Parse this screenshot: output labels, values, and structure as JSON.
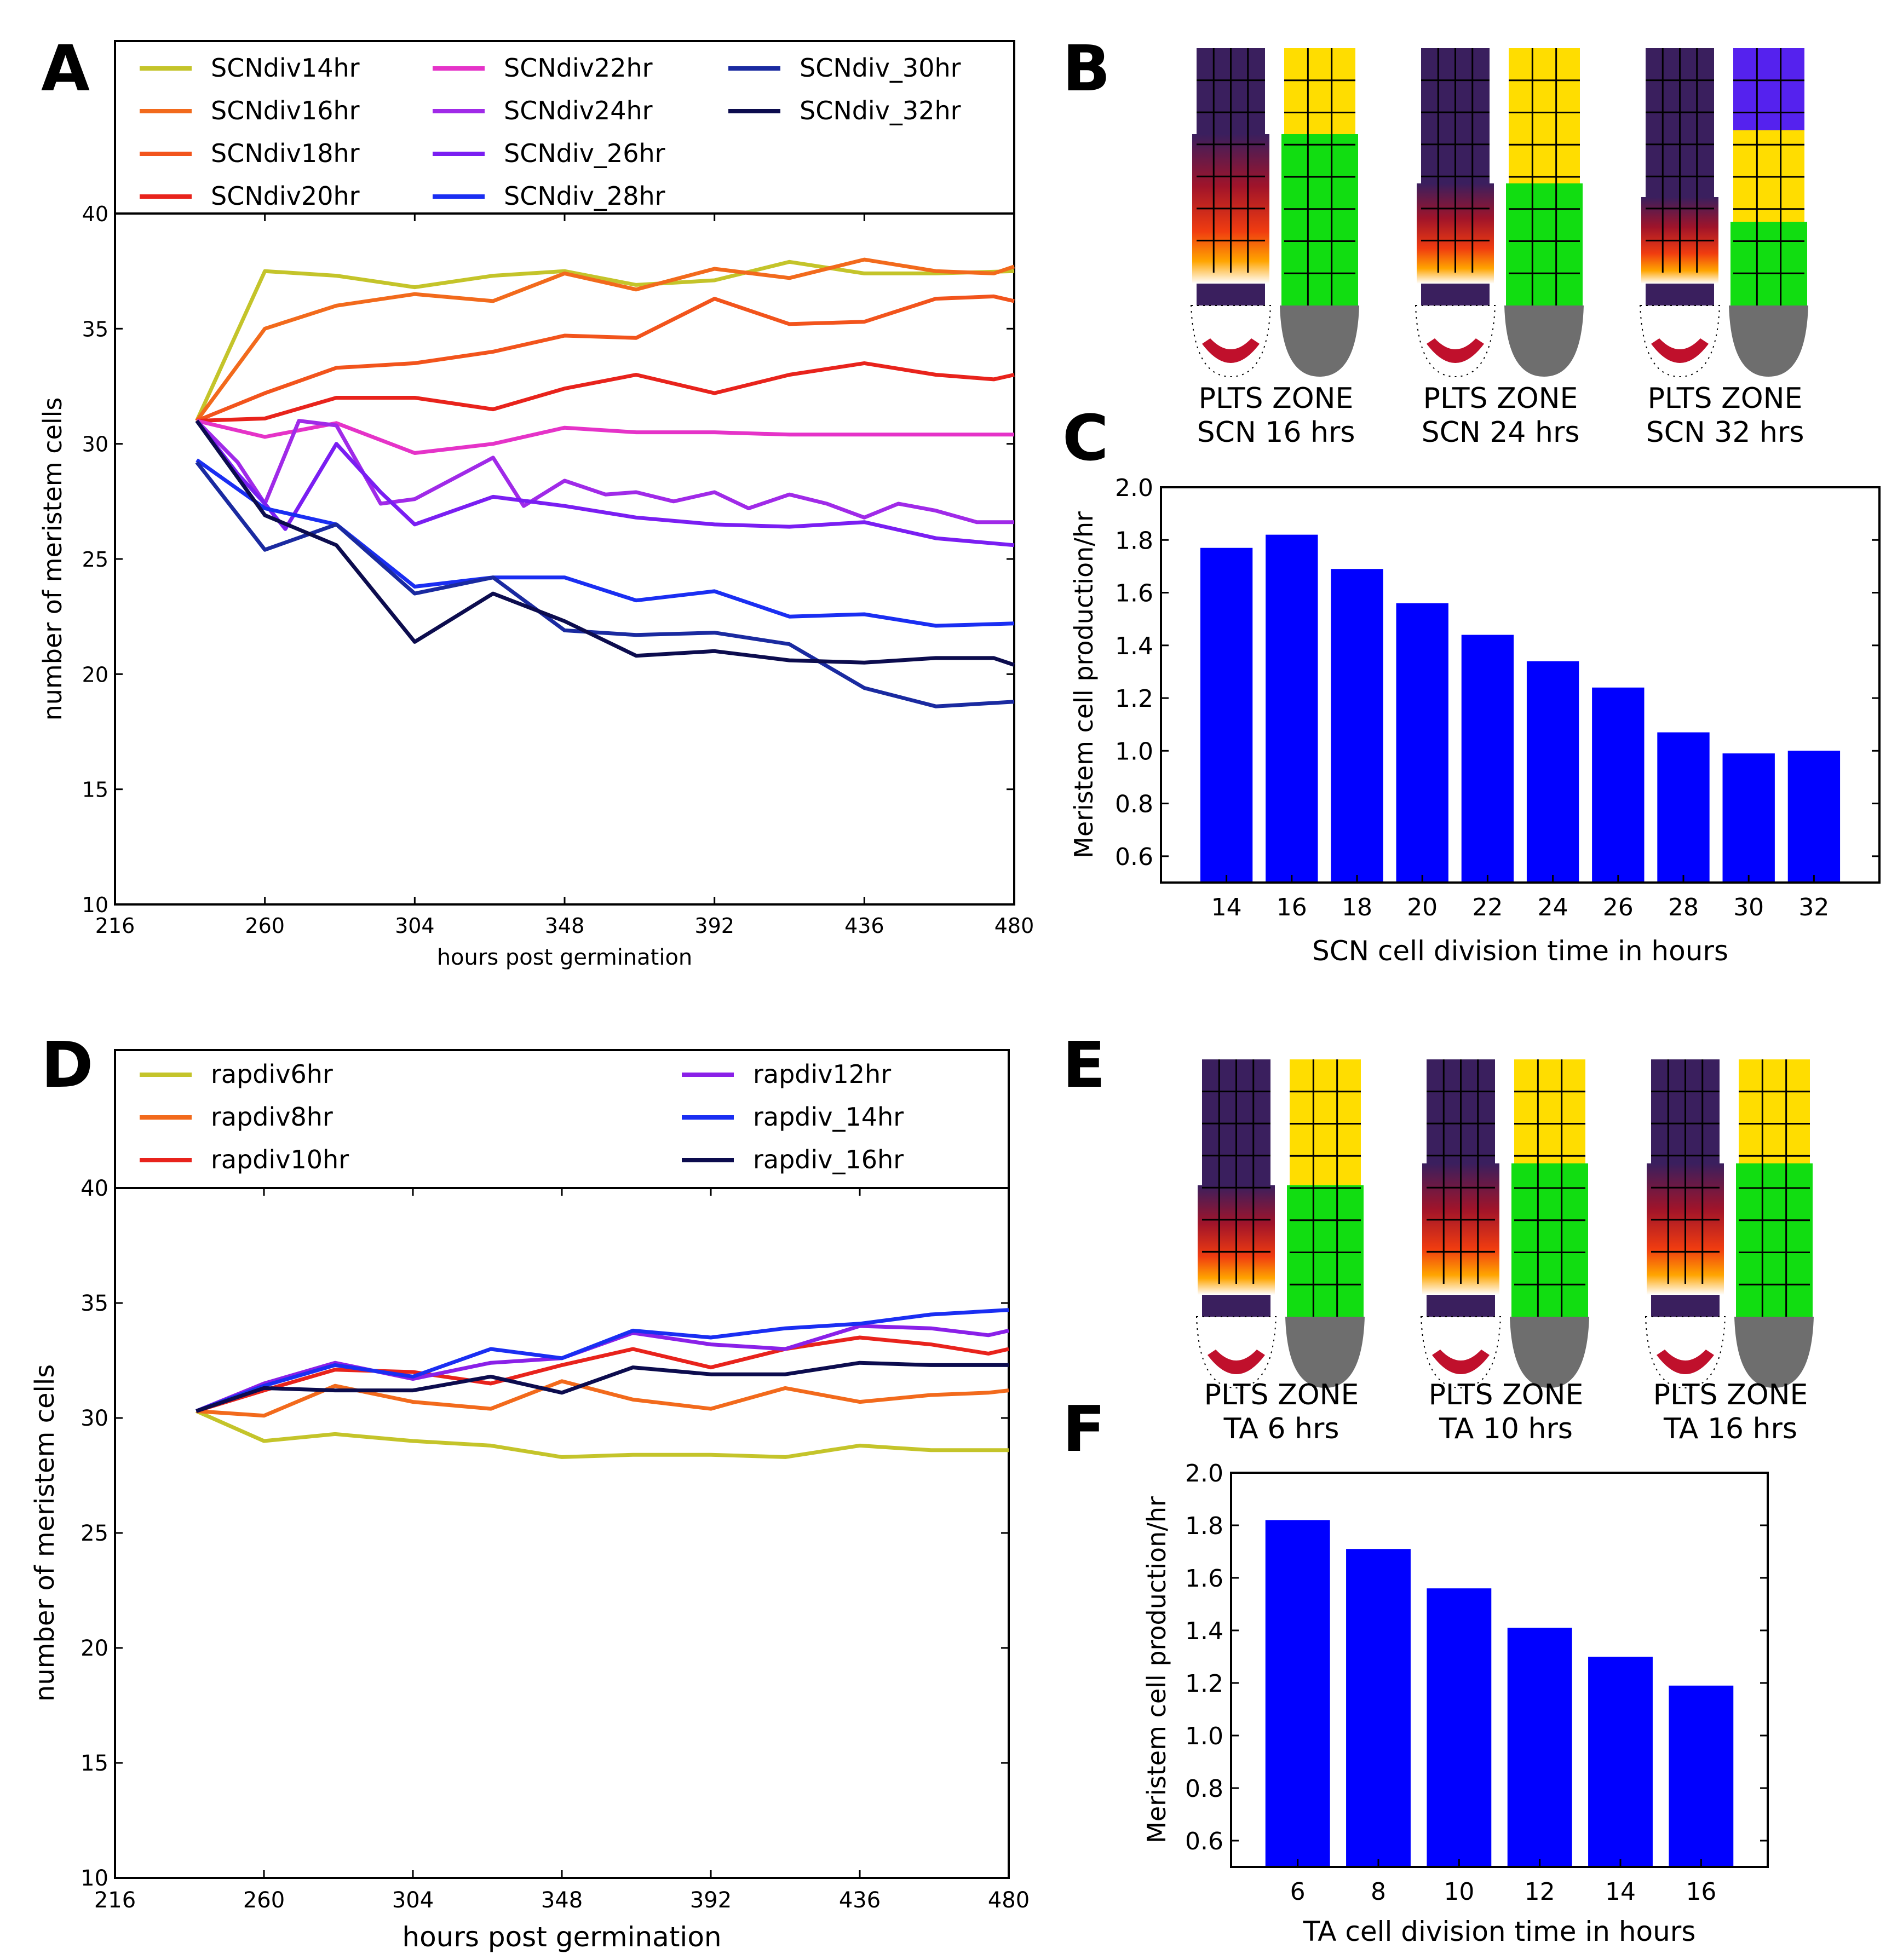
{
  "panel_letters": [
    "A",
    "B",
    "C",
    "D",
    "E",
    "F"
  ],
  "colors": {
    "SCNdiv14hr": "#c4c42a",
    "SCNdiv16hr": "#f26a1c",
    "SCNdiv18hr": "#f2541c",
    "SCNdiv20hr": "#e8231c",
    "SCNdiv22hr": "#e533c8",
    "SCNdiv24hr": "#a02ae8",
    "SCNdiv_26hr": "#7a1ef2",
    "SCNdiv_28hr": "#1a2ef2",
    "SCNdiv_30hr": "#1a2aa0",
    "SCNdiv_32hr": "#0c0c4e",
    "rapdiv6hr": "#c4c42a",
    "rapdiv8hr": "#f26a1c",
    "rapdiv10hr": "#e8231c",
    "rapdiv12hr": "#8a20e8",
    "rapdiv_14hr": "#1a2ef2",
    "rapdiv_16hr": "#0c0c4e",
    "bar": "#0000ff"
  },
  "root_images": {
    "B": {
      "pair_labels": [
        "PLTS  ZONE",
        "PLTS  ZONE",
        "PLTS  ZONE"
      ],
      "captions": [
        "SCN 16 hrs",
        "SCN 24 hrs",
        "SCN 32 hrs"
      ]
    },
    "E": {
      "pair_labels": [
        "PLTS  ZONE",
        "PLTS  ZONE",
        "PLTS  ZONE"
      ],
      "captions": [
        "TA 6 hrs",
        "TA 10 hrs",
        "TA 16 hrs"
      ]
    }
  },
  "chart_data": [
    {
      "id": "A",
      "type": "line",
      "xlabel": "hours post germination",
      "ylabel": "number of meristem cells",
      "xlim": [
        216,
        480
      ],
      "ylim": [
        10,
        40
      ],
      "xticks": [
        "216",
        "260",
        "304",
        "348",
        "392",
        "436",
        "480"
      ],
      "yticks": [
        "10",
        "15",
        "20",
        "25",
        "30",
        "35",
        "40"
      ],
      "legend_columns": [
        [
          "SCNdiv14hr",
          "SCNdiv16hr",
          "SCNdiv18hr",
          "SCNdiv20hr"
        ],
        [
          "SCNdiv22hr",
          "SCNdiv24hr",
          "SCNdiv_26hr",
          "SCNdiv_28hr"
        ],
        [
          "SCNdiv_30hr",
          "SCNdiv_32hr"
        ]
      ],
      "x": [
        240,
        260,
        281,
        304,
        327,
        348,
        369,
        392,
        414,
        436,
        457,
        480
      ],
      "series": [
        {
          "name": "SCNdiv14hr",
          "x": [
            240,
            240,
            260,
            281,
            304,
            327,
            348,
            369,
            392,
            414,
            436,
            457,
            480
          ],
          "values": [
            31,
            31,
            37.5,
            37.3,
            36.8,
            37.3,
            37.5,
            36.9,
            37.1,
            37.9,
            37.4,
            37.4,
            37.5
          ]
        },
        {
          "name": "SCNdiv16hr",
          "x": [
            240,
            260,
            281,
            304,
            327,
            348,
            369,
            392,
            414,
            436,
            457,
            474,
            480
          ],
          "values": [
            31,
            35,
            36,
            36.5,
            36.2,
            37.4,
            36.7,
            37.6,
            37.2,
            38,
            37.5,
            37.4,
            37.7
          ]
        },
        {
          "name": "SCNdiv18hr",
          "x": [
            240,
            260,
            281,
            304,
            327,
            348,
            369,
            392,
            414,
            436,
            457,
            474,
            480
          ],
          "values": [
            31,
            32.2,
            33.3,
            33.5,
            34,
            34.7,
            34.6,
            36.3,
            35.2,
            35.3,
            36.3,
            36.4,
            36.2
          ]
        },
        {
          "name": "SCNdiv20hr",
          "x": [
            240,
            260,
            281,
            304,
            327,
            348,
            369,
            392,
            414,
            436,
            457,
            474,
            480
          ],
          "values": [
            31,
            31.1,
            32,
            32,
            31.5,
            32.4,
            33,
            32.2,
            33,
            33.5,
            33,
            32.8,
            33
          ]
        },
        {
          "name": "SCNdiv22hr",
          "x": [
            240,
            260,
            281,
            304,
            327,
            348,
            369,
            392,
            414,
            436,
            457,
            480
          ],
          "values": [
            31,
            30.3,
            30.9,
            29.6,
            30,
            30.7,
            30.5,
            30.5,
            30.4,
            30.4,
            30.4,
            30.4
          ]
        },
        {
          "name": "SCNdiv24hr",
          "x": [
            240,
            252,
            260,
            270,
            281,
            294,
            304,
            327,
            336,
            348,
            360,
            369,
            380,
            392,
            402,
            414,
            425,
            436,
            446,
            457,
            469,
            480
          ],
          "values": [
            31,
            29.2,
            27.4,
            31,
            30.8,
            27.4,
            27.6,
            29.4,
            27.3,
            28.4,
            27.8,
            27.9,
            27.5,
            27.9,
            27.2,
            27.8,
            27.4,
            26.8,
            27.4,
            27.1,
            26.6,
            26.6
          ]
        },
        {
          "name": "SCNdiv_26hr",
          "x": [
            240,
            252,
            260,
            266,
            281,
            294,
            304,
            327,
            348,
            369,
            392,
            414,
            436,
            457,
            480
          ],
          "values": [
            31,
            28.7,
            27.4,
            26.3,
            30,
            27.9,
            26.5,
            27.7,
            27.3,
            26.8,
            26.5,
            26.4,
            26.6,
            25.9,
            25.6
          ]
        },
        {
          "name": "SCNdiv_28hr",
          "x": [
            240,
            260,
            281,
            304,
            327,
            348,
            369,
            392,
            414,
            436,
            457,
            480
          ],
          "values": [
            29.3,
            27.2,
            26.5,
            23.8,
            24.2,
            24.2,
            23.2,
            23.6,
            22.5,
            22.6,
            22.1,
            22.2
          ]
        },
        {
          "name": "SCNdiv_30hr",
          "x": [
            240,
            260,
            281,
            304,
            327,
            348,
            369,
            392,
            414,
            436,
            457,
            480
          ],
          "values": [
            29.2,
            25.4,
            26.5,
            23.5,
            24.2,
            21.9,
            21.7,
            21.8,
            21.3,
            19.4,
            18.6,
            18.8
          ]
        },
        {
          "name": "SCNdiv_32hr",
          "x": [
            240,
            260,
            281,
            304,
            327,
            348,
            369,
            392,
            414,
            436,
            457,
            474,
            480
          ],
          "values": [
            31,
            26.9,
            25.6,
            21.4,
            23.5,
            22.3,
            20.8,
            21,
            20.6,
            20.5,
            20.7,
            20.7,
            20.4
          ]
        }
      ]
    },
    {
      "id": "C",
      "type": "bar",
      "xlabel": "SCN cell division time in hours",
      "ylabel": "Meristem cell production/hr",
      "ylim": [
        0.5,
        2.0
      ],
      "yticks": [
        "0.6",
        "0.8",
        "1.0",
        "1.2",
        "1.4",
        "1.6",
        "1.8",
        "2.0"
      ],
      "categories": [
        "14",
        "16",
        "18",
        "20",
        "22",
        "24",
        "26",
        "28",
        "30",
        "32"
      ],
      "values": [
        1.77,
        1.82,
        1.69,
        1.56,
        1.44,
        1.34,
        1.24,
        1.07,
        0.99,
        1.0
      ]
    },
    {
      "id": "D",
      "type": "line",
      "xlabel": "hours post germination",
      "ylabel": "number of meristem cells",
      "xlim": [
        216,
        480
      ],
      "ylim": [
        10,
        40
      ],
      "xticks": [
        "216",
        "260",
        "304",
        "348",
        "392",
        "436",
        "480"
      ],
      "yticks": [
        "10",
        "15",
        "20",
        "25",
        "30",
        "35",
        "40"
      ],
      "legend_columns": [
        [
          "rapdiv6hr",
          "rapdiv8hr",
          "rapdiv10hr"
        ],
        [
          "rapdiv12hr",
          "rapdiv_14hr",
          "rapdiv_16hr"
        ]
      ],
      "series": [
        {
          "name": "rapdiv6hr",
          "x": [
            240,
            260,
            281,
            304,
            327,
            348,
            369,
            392,
            414,
            436,
            457,
            480
          ],
          "values": [
            30.3,
            29,
            29.3,
            29,
            28.8,
            28.3,
            28.4,
            28.4,
            28.3,
            28.8,
            28.6,
            28.6
          ]
        },
        {
          "name": "rapdiv8hr",
          "x": [
            240,
            260,
            281,
            304,
            327,
            348,
            369,
            392,
            414,
            436,
            457,
            474,
            480
          ],
          "values": [
            30.3,
            30.1,
            31.4,
            30.7,
            30.4,
            31.6,
            30.8,
            30.4,
            31.3,
            30.7,
            31,
            31.1,
            31.2
          ]
        },
        {
          "name": "rapdiv10hr",
          "x": [
            240,
            260,
            281,
            304,
            327,
            348,
            369,
            392,
            414,
            436,
            457,
            474,
            480
          ],
          "values": [
            30.3,
            31.2,
            32.1,
            32,
            31.5,
            32.3,
            33,
            32.2,
            33,
            33.5,
            33.2,
            32.8,
            33
          ]
        },
        {
          "name": "rapdiv12hr",
          "x": [
            240,
            260,
            281,
            304,
            327,
            348,
            369,
            392,
            414,
            436,
            457,
            474,
            480
          ],
          "values": [
            30.3,
            31.5,
            32.4,
            31.7,
            32.4,
            32.6,
            33.7,
            33.2,
            33,
            34,
            33.9,
            33.6,
            33.8
          ]
        },
        {
          "name": "rapdiv_14hr",
          "x": [
            240,
            260,
            281,
            304,
            327,
            348,
            369,
            392,
            414,
            436,
            457,
            480
          ],
          "values": [
            30.3,
            31.4,
            32.3,
            31.8,
            33,
            32.6,
            33.8,
            33.5,
            33.9,
            34.1,
            34.5,
            34.7
          ]
        },
        {
          "name": "rapdiv_16hr",
          "x": [
            240,
            260,
            281,
            304,
            327,
            348,
            369,
            392,
            414,
            436,
            457,
            480
          ],
          "values": [
            30.3,
            31.3,
            31.2,
            31.2,
            31.8,
            31.1,
            32.2,
            31.9,
            31.9,
            32.4,
            32.3,
            32.3
          ]
        }
      ]
    },
    {
      "id": "F",
      "type": "bar",
      "xlabel": "TA cell division time in hours",
      "ylabel": "Meristem cell production/hr",
      "ylim": [
        0.5,
        2.0
      ],
      "yticks": [
        "0.6",
        "0.8",
        "1.0",
        "1.2",
        "1.4",
        "1.6",
        "1.8",
        "2.0"
      ],
      "categories": [
        "6",
        "8",
        "10",
        "12",
        "14",
        "16"
      ],
      "values": [
        1.82,
        1.71,
        1.56,
        1.41,
        1.3,
        1.19
      ]
    }
  ]
}
